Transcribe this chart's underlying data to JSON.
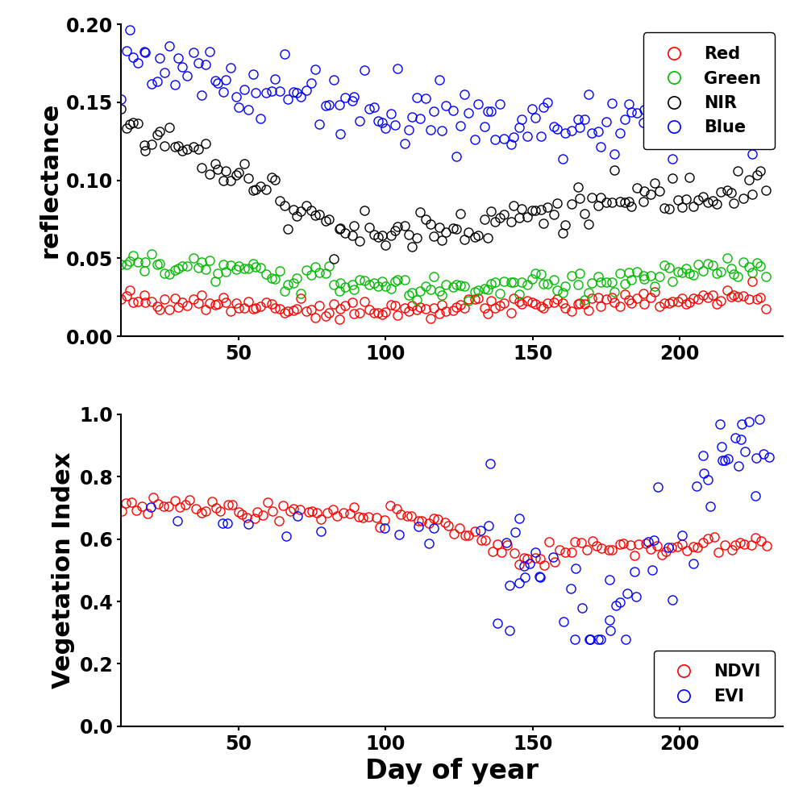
{
  "top_panel": {
    "ylabel": "reflectance",
    "ylim": [
      0,
      0.2
    ],
    "yticks": [
      0,
      0.05,
      0.1,
      0.15,
      0.2
    ],
    "xlim": [
      10,
      235
    ],
    "xticks": [
      50,
      100,
      150,
      200
    ]
  },
  "bottom_panel": {
    "ylabel": "Vegetation Index",
    "ylim": [
      0,
      1.0
    ],
    "yticks": [
      0,
      0.2,
      0.4,
      0.6,
      0.8,
      1.0
    ],
    "xlim": [
      10,
      235
    ],
    "xticks": [
      50,
      100,
      150,
      200
    ],
    "xlabel": "Day of year"
  },
  "colors": {
    "Red": "#FF0000",
    "Green": "#00BB00",
    "NIR": "#000000",
    "Blue": "#0000FF",
    "NDVI": "#FF0000",
    "EVI": "#0000FF"
  },
  "marker_size": 8,
  "markeredgewidth": 1.0,
  "font_size_label": 22,
  "font_size_tick": 17,
  "font_size_legend": 15
}
